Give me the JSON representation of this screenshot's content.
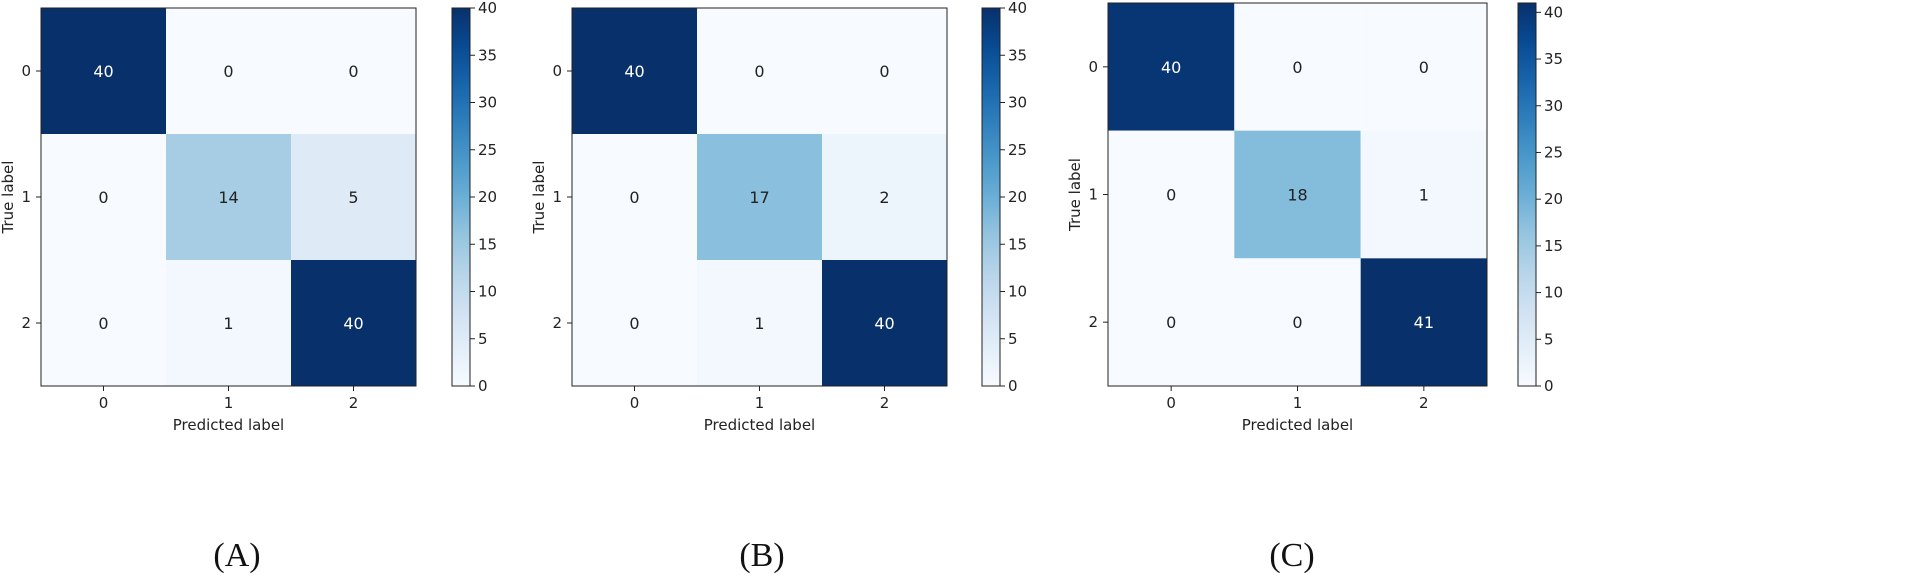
{
  "chart_data": [
    {
      "type": "heatmap",
      "caption": "(A)",
      "xlabel": "Predicted label",
      "ylabel": "True label",
      "x_categories": [
        "0",
        "1",
        "2"
      ],
      "y_categories": [
        "0",
        "1",
        "2"
      ],
      "values": [
        [
          40,
          0,
          0
        ],
        [
          0,
          14,
          5
        ],
        [
          0,
          1,
          40
        ]
      ],
      "colormap": "Blues",
      "colorbar": {
        "min": 0,
        "max": 40,
        "ticks": [
          0,
          5,
          10,
          15,
          20,
          25,
          30,
          35,
          40
        ]
      }
    },
    {
      "type": "heatmap",
      "caption": "(B)",
      "xlabel": "Predicted label",
      "ylabel": "True label",
      "x_categories": [
        "0",
        "1",
        "2"
      ],
      "y_categories": [
        "0",
        "1",
        "2"
      ],
      "values": [
        [
          40,
          0,
          0
        ],
        [
          0,
          17,
          2
        ],
        [
          0,
          1,
          40
        ]
      ],
      "colormap": "Blues",
      "colorbar": {
        "min": 0,
        "max": 40,
        "ticks": [
          0,
          5,
          10,
          15,
          20,
          25,
          30,
          35,
          40
        ]
      }
    },
    {
      "type": "heatmap",
      "caption": "(C)",
      "xlabel": "Predicted label",
      "ylabel": "True label",
      "x_categories": [
        "0",
        "1",
        "2"
      ],
      "y_categories": [
        "0",
        "1",
        "2"
      ],
      "values": [
        [
          40,
          0,
          0
        ],
        [
          0,
          18,
          1
        ],
        [
          0,
          0,
          41
        ]
      ],
      "colormap": "Blues",
      "colorbar": {
        "min": 0,
        "max": 41,
        "ticks": [
          0,
          5,
          10,
          15,
          20,
          25,
          30,
          35,
          40
        ]
      }
    }
  ]
}
